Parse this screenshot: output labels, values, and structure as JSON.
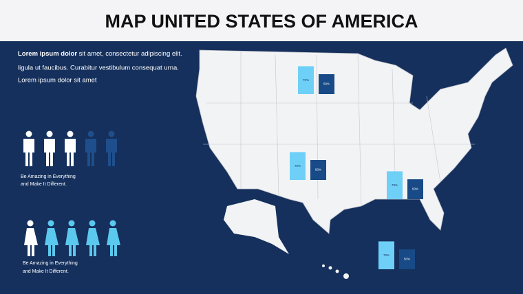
{
  "header": {
    "title": "MAP UNITED STATES OF AMERICA"
  },
  "intro": {
    "bold": "Lorem ipsum dolor",
    "lines": [
      " sit amet, consectetur adipiscing elit.",
      "ligula ut faucibus. Curabitur vestibulum consequat urna.",
      "Lorem ipsum dolor sit amet"
    ]
  },
  "men": {
    "caption_lines": [
      "Be Amazing in Everything",
      "and Make It Different."
    ]
  },
  "women": {
    "caption_lines": [
      "Be Amazing in Everything",
      "and Make It Different."
    ]
  },
  "map_bars": [
    {
      "items": [
        {
          "value": 70,
          "label": "70%"
        },
        {
          "value": 50,
          "label": "50%"
        }
      ]
    },
    {
      "items": [
        {
          "value": 70,
          "label": "70%"
        },
        {
          "value": 50,
          "label": "50%"
        }
      ]
    },
    {
      "items": [
        {
          "value": 70,
          "label": "70%"
        },
        {
          "value": 50,
          "label": "50%"
        }
      ]
    },
    {
      "items": [
        {
          "value": 70,
          "label": "70%"
        },
        {
          "value": 50,
          "label": "50%"
        }
      ]
    }
  ]
}
